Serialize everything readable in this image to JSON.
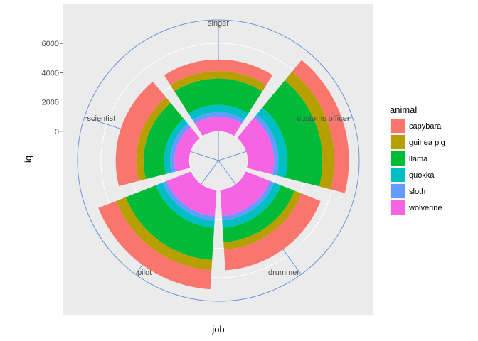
{
  "chart_data": {
    "type": "bar",
    "coord": "polar",
    "position": "stacked",
    "xlabel": "job",
    "ylabel": "iq",
    "categories": [
      "singer",
      "customs officer",
      "drummer",
      "pilot",
      "scientist"
    ],
    "y_ticks": [
      0,
      2000,
      4000,
      6000
    ],
    "ylim": [
      -2000,
      7600
    ],
    "series": [
      {
        "name": "capybara",
        "color": "#F8766D",
        "values": [
          800,
          1000,
          1400,
          1300,
          1400
        ]
      },
      {
        "name": "guinea pig",
        "color": "#B79F00",
        "values": [
          500,
          800,
          500,
          700,
          500
        ]
      },
      {
        "name": "llama",
        "color": "#00BA38",
        "values": [
          1800,
          2400,
          1000,
          2200,
          1400
        ]
      },
      {
        "name": "quokka",
        "color": "#00BFC4",
        "values": [
          500,
          600,
          500,
          500,
          400
        ]
      },
      {
        "name": "sloth",
        "color": "#619CFF",
        "values": [
          300,
          300,
          300,
          300,
          300
        ]
      },
      {
        "name": "wolverine",
        "color": "#F564E3",
        "values": [
          1000,
          1800,
          1800,
          1800,
          1000
        ]
      }
    ],
    "grid": true,
    "legend_position": "right",
    "legend_title": "animal"
  }
}
